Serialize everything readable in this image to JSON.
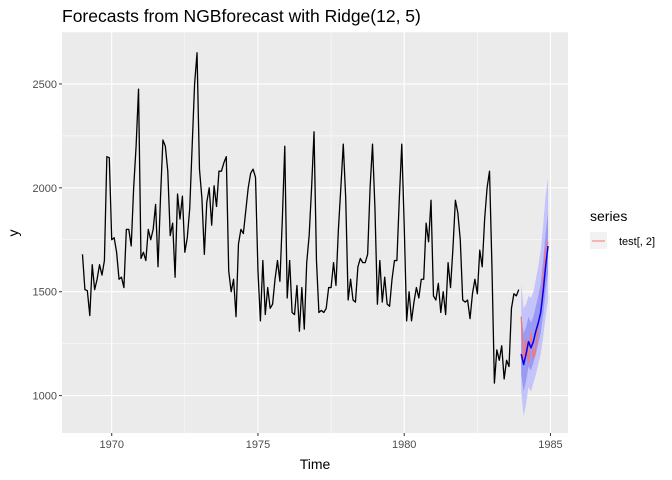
{
  "chart_data": {
    "type": "line",
    "title": "Forecasts from NGBforecast with Ridge(12, 5)",
    "xlabel": "Time",
    "ylabel": "y",
    "xlim": [
      1968.3,
      1985.6
    ],
    "ylim": [
      820,
      2750
    ],
    "x_ticks": [
      "1970",
      "1975",
      "1980",
      "1985"
    ],
    "y_ticks": [
      "1000",
      "1500",
      "2000",
      "2500"
    ],
    "grid": true,
    "start": 1969,
    "frequency": 12,
    "history": [
      1680,
      1510,
      1505,
      1385,
      1630,
      1510,
      1560,
      1630,
      1580,
      1650,
      2150,
      2145,
      1750,
      1760,
      1690,
      1560,
      1570,
      1520,
      1800,
      1800,
      1720,
      2000,
      2200,
      2475,
      1660,
      1690,
      1650,
      1800,
      1750,
      1800,
      1920,
      1620,
      1950,
      2230,
      2200,
      2080,
      1770,
      1830,
      1570,
      1970,
      1850,
      1960,
      1690,
      1760,
      1900,
      2200,
      2500,
      2650,
      2090,
      1950,
      1680,
      1930,
      2000,
      1820,
      2010,
      1910,
      2080,
      2080,
      2120,
      2150,
      1600,
      1500,
      1560,
      1380,
      1730,
      1800,
      1780,
      1890,
      2000,
      2070,
      2090,
      2050,
      1600,
      1360,
      1650,
      1390,
      1520,
      1420,
      1440,
      1560,
      1650,
      1550,
      1850,
      2200,
      1470,
      1650,
      1400,
      1390,
      1530,
      1310,
      1520,
      1320,
      1640,
      1770,
      2000,
      2270,
      1650,
      1400,
      1410,
      1400,
      1420,
      1520,
      1520,
      1640,
      1530,
      1800,
      2000,
      2210,
      1950,
      1460,
      1560,
      1460,
      1450,
      1620,
      1660,
      1640,
      1640,
      1680,
      2000,
      2210,
      1900,
      1440,
      1650,
      1450,
      1570,
      1440,
      1430,
      1560,
      1650,
      1650,
      1950,
      2210,
      1820,
      1360,
      1500,
      1360,
      1450,
      1520,
      1470,
      1560,
      1560,
      1830,
      1740,
      1940,
      1480,
      1460,
      1540,
      1400,
      1500,
      1390,
      1640,
      1520,
      1710,
      1940,
      1880,
      1750,
      1460,
      1450,
      1460,
      1370,
      1490,
      1560,
      1490,
      1700,
      1620,
      1850,
      2000,
      2080,
      1620,
      1060,
      1220,
      1170,
      1240,
      1080,
      1170,
      1140,
      1420,
      1490,
      1480,
      1510
    ],
    "forecast_start": 1984,
    "forecast": [
      1200,
      1150,
      1200,
      1260,
      1230,
      1260,
      1310,
      1350,
      1400,
      1500,
      1620,
      1720
    ],
    "lower95": [
      1020,
      900,
      960,
      1040,
      1020,
      1060,
      1100,
      1150,
      1200,
      1280,
      1380,
      1460
    ],
    "upper95": [
      1540,
      1420,
      1440,
      1480,
      1470,
      1500,
      1560,
      1620,
      1700,
      1820,
      1960,
      2050
    ],
    "lower80": [
      1100,
      1020,
      1070,
      1140,
      1120,
      1160,
      1200,
      1250,
      1300,
      1390,
      1500,
      1590
    ],
    "upper80": [
      1380,
      1300,
      1330,
      1380,
      1350,
      1380,
      1430,
      1480,
      1540,
      1650,
      1780,
      1880
    ],
    "series": [
      {
        "name": "test[, 2]",
        "color": "#f8766d",
        "values": [
          1380,
          1150,
          1270,
          1160,
          1300,
          1180,
          1230,
          1350,
          1400,
          1550,
          1700,
          1740
        ]
      }
    ],
    "legend": {
      "title": "series",
      "placement": "right"
    },
    "colors": {
      "history": "#000000",
      "forecast": "#0000ff",
      "band95": "#c4c4fa",
      "band80": "#9a9af2",
      "panel": "#ebebeb",
      "grid": "#ffffff"
    }
  }
}
